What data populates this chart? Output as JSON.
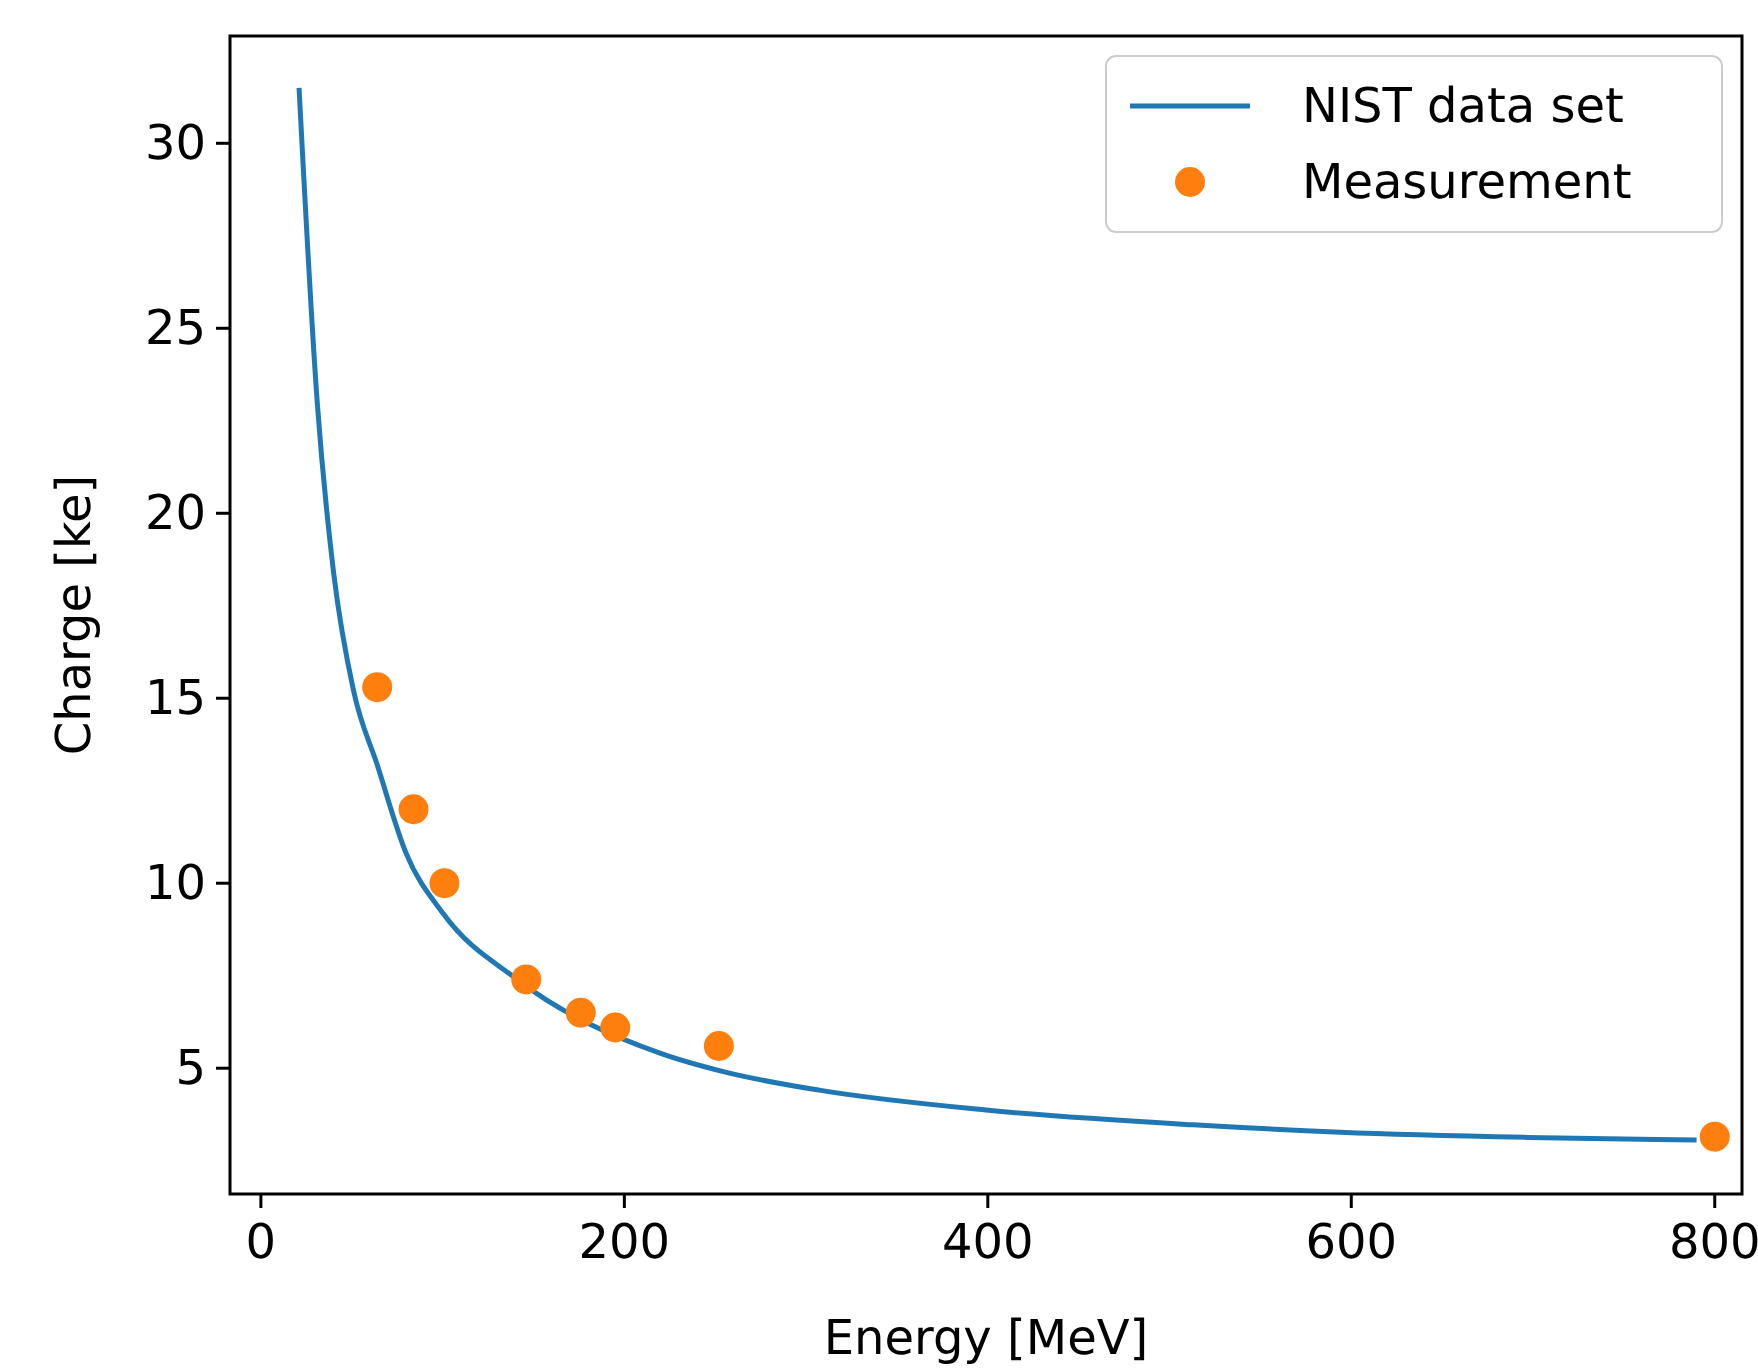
{
  "chart_data": {
    "type": "line",
    "xlabel": "Energy [MeV]",
    "ylabel": "Charge [ke]",
    "xlim": [
      -17,
      815
    ],
    "ylim": [
      1.6,
      32.9
    ],
    "xticks": [
      0,
      200,
      400,
      600,
      800
    ],
    "yticks": [
      5,
      10,
      15,
      20,
      25,
      30
    ],
    "grid": false,
    "legend": "top right",
    "series": [
      {
        "name": "NIST data set",
        "color": "#1f77b4",
        "marker": "none",
        "x": [
          21,
          31,
          40,
          51,
          64,
          80,
          100,
          141,
          220,
          255,
          308,
          399,
          513,
          594,
          697,
          790
        ],
        "values": [
          31.5,
          23.0,
          18.4,
          15.2,
          13.2,
          10.8,
          9.2,
          7.4,
          5.4,
          4.9,
          4.4,
          3.87,
          3.47,
          3.27,
          3.13,
          3.06
        ]
      },
      {
        "name": "Measurement",
        "type": "scatter",
        "color": "#ff7f0e",
        "marker": "circle",
        "x": [
          64,
          84,
          101,
          146,
          176,
          195,
          252,
          800
        ],
        "values": [
          15.3,
          12.0,
          10.0,
          7.4,
          6.5,
          6.1,
          5.6,
          3.15
        ]
      }
    ]
  }
}
